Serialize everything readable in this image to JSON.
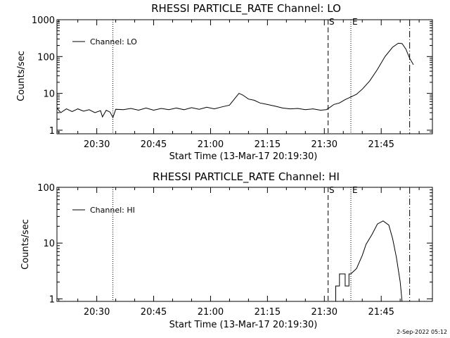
{
  "footer": {
    "timestamp": "2-Sep-2022 05:12"
  },
  "chart_data": [
    {
      "type": "line",
      "title": "RHESSI PARTICLE_RATE Channel: LO",
      "xlabel": "Start Time (13-Mar-17 20:19:30)",
      "ylabel": "Counts/sec",
      "yscale": "log",
      "xlim": [
        "20:19:30",
        "21:58:30"
      ],
      "ylim": [
        0.8,
        1000
      ],
      "xticks": [
        "20:30",
        "20:45",
        "21:00",
        "21:15",
        "21:30",
        "21:45"
      ],
      "yticks": [
        "1",
        "10",
        "100",
        "1000"
      ],
      "legend": {
        "position": "top-left",
        "entries": [
          "Channel: LO"
        ]
      },
      "markers": [
        {
          "time": "20:34:15",
          "style": "dotted",
          "label": ""
        },
        {
          "time": "21:31:00",
          "style": "dashed",
          "label": "S"
        },
        {
          "time": "21:37:00",
          "style": "dotted",
          "label": "E"
        },
        {
          "time": "21:52:30",
          "style": "dash-dot",
          "label": ""
        }
      ],
      "series": [
        {
          "name": "Channel: LO",
          "points": [
            [
              "20:19:30",
              4.0
            ],
            [
              "20:20:30",
              3.0
            ],
            [
              "20:22:00",
              3.8
            ],
            [
              "20:23:30",
              3.2
            ],
            [
              "20:25:00",
              3.8
            ],
            [
              "20:26:30",
              3.3
            ],
            [
              "20:28:00",
              3.6
            ],
            [
              "20:29:30",
              3.0
            ],
            [
              "20:31:00",
              3.4
            ],
            [
              "20:31:30",
              2.3
            ],
            [
              "20:32:30",
              3.5
            ],
            [
              "20:33:30",
              3.1
            ],
            [
              "20:34:15",
              2.2
            ],
            [
              "20:35:00",
              3.7
            ],
            [
              "20:37:00",
              3.6
            ],
            [
              "20:39:00",
              3.9
            ],
            [
              "20:41:00",
              3.5
            ],
            [
              "20:43:00",
              4.0
            ],
            [
              "20:45:00",
              3.5
            ],
            [
              "20:47:00",
              3.9
            ],
            [
              "20:49:00",
              3.6
            ],
            [
              "20:51:00",
              4.0
            ],
            [
              "20:53:00",
              3.6
            ],
            [
              "20:55:00",
              4.1
            ],
            [
              "20:57:00",
              3.7
            ],
            [
              "20:59:00",
              4.2
            ],
            [
              "21:01:00",
              3.8
            ],
            [
              "21:03:00",
              4.3
            ],
            [
              "21:05:00",
              4.8
            ],
            [
              "21:06:30",
              7.5
            ],
            [
              "21:07:30",
              10.0
            ],
            [
              "21:08:30",
              9.0
            ],
            [
              "21:10:00",
              7.0
            ],
            [
              "21:11:30",
              6.5
            ],
            [
              "21:13:00",
              5.5
            ],
            [
              "21:15:00",
              5.0
            ],
            [
              "21:17:00",
              4.5
            ],
            [
              "21:19:00",
              4.0
            ],
            [
              "21:21:00",
              3.8
            ],
            [
              "21:23:00",
              3.9
            ],
            [
              "21:25:00",
              3.6
            ],
            [
              "21:27:00",
              3.8
            ],
            [
              "21:29:00",
              3.5
            ],
            [
              "21:30:30",
              3.6
            ],
            [
              "21:31:30",
              4.2
            ],
            [
              "21:32:30",
              5.0
            ],
            [
              "21:34:00",
              5.5
            ],
            [
              "21:35:30",
              6.8
            ],
            [
              "21:37:00",
              8.0
            ],
            [
              "21:38:30",
              9.5
            ],
            [
              "21:40:00",
              13.0
            ],
            [
              "21:42:00",
              22.0
            ],
            [
              "21:44:00",
              45.0
            ],
            [
              "21:46:00",
              100.0
            ],
            [
              "21:48:00",
              180.0
            ],
            [
              "21:49:30",
              230.0
            ],
            [
              "21:50:30",
              225.0
            ],
            [
              "21:51:30",
              160.0
            ],
            [
              "21:52:30",
              90.0
            ],
            [
              "21:53:30",
              60.0
            ]
          ]
        }
      ]
    },
    {
      "type": "line",
      "title": "RHESSI PARTICLE_RATE Channel: HI",
      "xlabel": "Start Time (13-Mar-17 20:19:30)",
      "ylabel": "Counts/sec",
      "yscale": "log",
      "xlim": [
        "20:19:30",
        "21:58:30"
      ],
      "ylim": [
        0.9,
        100
      ],
      "xticks": [
        "20:30",
        "20:45",
        "21:00",
        "21:15",
        "21:30",
        "21:45"
      ],
      "yticks": [
        "1",
        "10",
        "100"
      ],
      "legend": {
        "position": "top-left",
        "entries": [
          "Channel: HI"
        ]
      },
      "markers": [
        {
          "time": "20:34:15",
          "style": "dotted",
          "label": ""
        },
        {
          "time": "21:31:00",
          "style": "dashed",
          "label": "S"
        },
        {
          "time": "21:37:00",
          "style": "dotted",
          "label": "E"
        },
        {
          "time": "21:52:30",
          "style": "dash-dot",
          "label": ""
        }
      ],
      "series": [
        {
          "name": "Channel: HI",
          "points": [
            [
              "21:33:00",
              0.9
            ],
            [
              "21:33:00",
              1.7
            ],
            [
              "21:34:00",
              1.7
            ],
            [
              "21:34:00",
              2.8
            ],
            [
              "21:35:30",
              2.8
            ],
            [
              "21:35:30",
              1.7
            ],
            [
              "21:36:30",
              1.7
            ],
            [
              "21:36:30",
              2.8
            ],
            [
              "21:37:00",
              2.8
            ],
            [
              "21:38:30",
              3.5
            ],
            [
              "21:40:00",
              6.0
            ],
            [
              "21:41:00",
              9.5
            ],
            [
              "21:42:30",
              14.0
            ],
            [
              "21:44:00",
              22.0
            ],
            [
              "21:45:30",
              25.0
            ],
            [
              "21:47:00",
              21.0
            ],
            [
              "21:48:00",
              12.0
            ],
            [
              "21:49:00",
              5.5
            ],
            [
              "21:50:00",
              2.0
            ],
            [
              "21:50:30",
              0.9
            ]
          ]
        }
      ]
    }
  ]
}
